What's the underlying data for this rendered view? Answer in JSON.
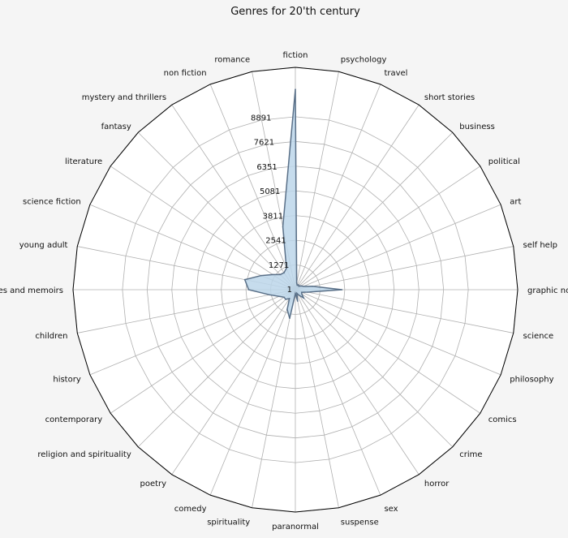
{
  "chart_data": {
    "type": "radar",
    "title": "Genres for 20'th century",
    "categories": [
      "fiction",
      "psychology",
      "travel",
      "short stories",
      "business",
      "political",
      "art",
      "self help",
      "graphic novels",
      "science",
      "philosophy",
      "comics",
      "crime",
      "horror",
      "sex",
      "suspense",
      "paranormal",
      "spirituality",
      "comedy",
      "poetry",
      "religion and spirituality",
      "contemporary",
      "history",
      "children",
      "biographies and memoirs",
      "young adult",
      "science fiction",
      "literature",
      "fantasy",
      "mystery and thrillers",
      "non fiction",
      "romance"
    ],
    "values": [
      10300,
      350,
      250,
      300,
      250,
      350,
      450,
      900,
      2400,
      650,
      350,
      400,
      600,
      350,
      200,
      600,
      200,
      1500,
      1100,
      550,
      700,
      700,
      900,
      1350,
      2400,
      2650,
      1900,
      1400,
      1100,
      1050,
      1200,
      3300
    ],
    "r_ticks": [
      1,
      1271,
      2541,
      3811,
      5081,
      6351,
      7621,
      8891
    ],
    "r_max": 11430,
    "grid": true,
    "colors": {
      "fill": "#bcd6ea",
      "line": "#5a7088",
      "grid": "#b0b0b0",
      "background": "#f5f5f5",
      "plot_bg": "#ffffff"
    }
  }
}
